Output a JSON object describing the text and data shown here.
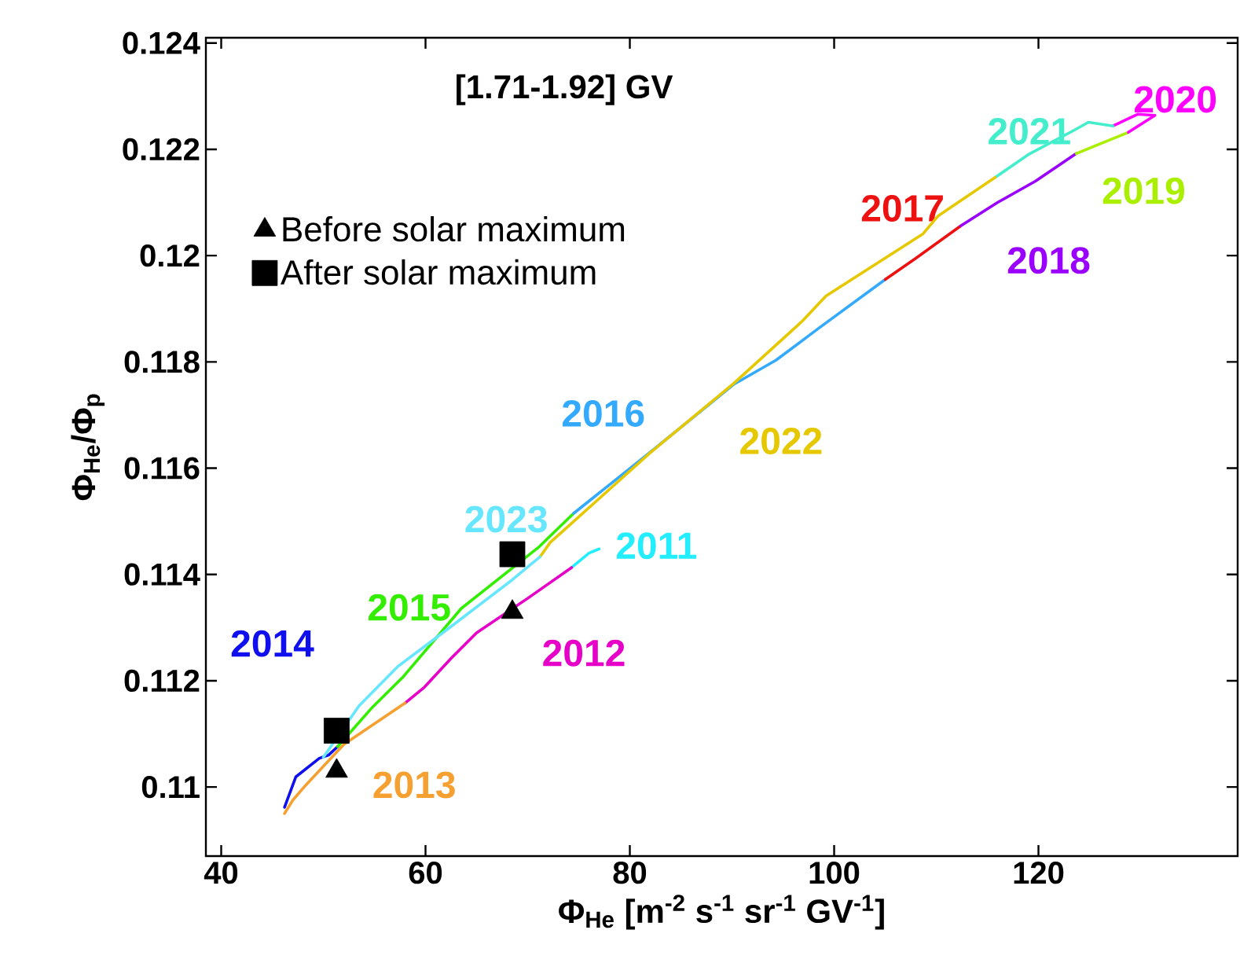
{
  "chart_data": {
    "type": "line",
    "title": "[1.71-1.92] GV",
    "xlabel": "Φ$_{He}$ [m$^{-2}$ s$^{-1}$ sr$^{-1}$ GV$^{-1}$]",
    "ylabel": "Φ$_{He}$/Φ$_{p}$",
    "xlim": [
      38.5,
      139.5
    ],
    "ylim": [
      0.1087,
      0.1241
    ],
    "xticks": [
      40,
      60,
      80,
      100,
      120
    ],
    "yticks": [
      0.11,
      0.112,
      0.114,
      0.116,
      0.118,
      0.12,
      0.122,
      0.124
    ],
    "legend": "top left",
    "series": [
      {
        "name": "2011",
        "color": "#22eeff",
        "x": [
          77.0,
          76.0,
          74.3
        ],
        "values": [
          0.11448,
          0.1144,
          0.11413
        ]
      },
      {
        "name": "2012",
        "type": "line",
        "color": "#e600c8",
        "x": [
          74.3,
          70.0,
          65.0,
          62.5,
          59.9,
          58.0
        ],
        "values": [
          0.11413,
          0.11355,
          0.1129,
          0.11242,
          0.11188,
          0.11158
        ]
      },
      {
        "name": "2013",
        "type": "line",
        "color": "#f5a030",
        "x": [
          58.0,
          55.3,
          52.0,
          48.3,
          47.0,
          46.2
        ],
        "values": [
          0.11158,
          0.11123,
          0.1108,
          0.11004,
          0.10975,
          0.1095
        ]
      },
      {
        "name": "2014",
        "type": "line",
        "color": "#1010ee",
        "x": [
          46.2,
          47.3,
          49.6,
          50.5,
          51.4
        ],
        "values": [
          0.10962,
          0.11019,
          0.11054,
          0.1106,
          0.11076
        ]
      },
      {
        "name": "2015",
        "type": "line",
        "color": "#33ee00",
        "x": [
          51.4,
          54.7,
          57.8,
          63.5,
          71.0,
          74.5
        ],
        "values": [
          0.11076,
          0.11148,
          0.11207,
          0.11336,
          0.1145,
          0.11515
        ]
      },
      {
        "name": "2016",
        "type": "line",
        "color": "#33aaff",
        "x": [
          74.5,
          82.0,
          90.2,
          94.3,
          98.4,
          105.0
        ],
        "values": [
          0.11515,
          0.1163,
          0.11758,
          0.11803,
          0.11862,
          0.11955
        ]
      },
      {
        "name": "2017",
        "type": "line",
        "color": "#ee1111",
        "x": [
          105.0,
          108.0,
          112.4
        ],
        "values": [
          0.11955,
          0.11995,
          0.12056
        ]
      },
      {
        "name": "2018",
        "type": "line",
        "color": "#9900ff",
        "x": [
          112.4,
          116.0,
          119.7,
          123.7
        ],
        "values": [
          0.12056,
          0.121,
          0.1214,
          0.12192
        ]
      },
      {
        "name": "2019",
        "type": "line",
        "color": "#aaee00",
        "x": [
          123.7,
          126.0,
          128.8
        ],
        "values": [
          0.12192,
          0.1221,
          0.12232
        ]
      },
      {
        "name": "2020",
        "type": "line",
        "color": "#ff00ff",
        "x": [
          128.8,
          131.4,
          129.7,
          127.3
        ],
        "values": [
          0.12232,
          0.12264,
          0.12266,
          0.12244
        ]
      },
      {
        "name": "2021",
        "type": "line",
        "color": "#44eecc",
        "x": [
          127.3,
          124.9,
          123.3,
          119.0,
          115.75
        ],
        "values": [
          0.12244,
          0.12251,
          0.12234,
          0.1219,
          0.12147
        ]
      },
      {
        "name": "2022",
        "type": "line",
        "color": "#e6c800",
        "x": [
          115.75,
          110.2,
          108.7,
          99.2,
          96.9,
          90.2,
          82.0,
          72.2,
          71.2
        ],
        "values": [
          0.12147,
          0.12075,
          0.12041,
          0.11924,
          0.11877,
          0.1176,
          0.11629,
          0.1146,
          0.11433
        ]
      },
      {
        "name": "2023",
        "type": "line",
        "color": "#66e6ff",
        "x": [
          71.2,
          68.5,
          62.5,
          57.3,
          53.5,
          50.0
        ],
        "values": [
          0.11433,
          0.1139,
          0.11302,
          0.11227,
          0.11153,
          0.11056
        ]
      },
      {
        "name": "Before solar maximum",
        "type": "scatter",
        "marker": "triangle",
        "color": "#000000",
        "x": [
          51.3,
          68.5
        ],
        "values": [
          0.1103,
          0.11329
        ]
      },
      {
        "name": "After solar maximum",
        "type": "scatter",
        "marker": "square",
        "color": "#000000",
        "x": [
          51.3,
          68.5
        ],
        "values": [
          0.11106,
          0.11438
        ]
      }
    ]
  }
}
